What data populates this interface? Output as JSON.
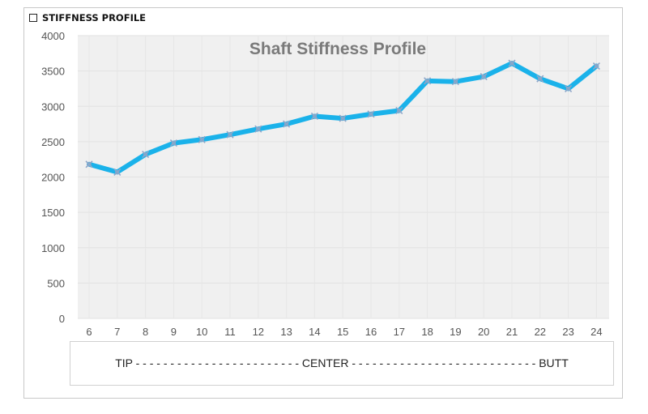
{
  "header": {
    "label": "STIFFNESS PROFILE"
  },
  "footer": {
    "text": "TIP - - - - - - - - - - - - - - - - - - - - - - - - CENTER - - - - - - - - - - - - - - - - - - - - - - - - - - - BUTT"
  },
  "chart_data": {
    "type": "line",
    "title": "Shaft Stiffness Profile",
    "xlabel": "",
    "ylabel": "",
    "categories": [
      "6",
      "7",
      "8",
      "9",
      "10",
      "11",
      "12",
      "13",
      "14",
      "15",
      "16",
      "17",
      "18",
      "19",
      "20",
      "21",
      "22",
      "23",
      "24"
    ],
    "series": [
      {
        "values": [
          2180,
          2070,
          2320,
          2480,
          2530,
          2600,
          2680,
          2750,
          2860,
          2830,
          2890,
          2940,
          3360,
          3350,
          3420,
          3610,
          3390,
          3250,
          3570
        ]
      }
    ],
    "ylim": [
      0,
      4000
    ],
    "yticks": [
      0,
      500,
      1000,
      1500,
      2000,
      2500,
      3000,
      3500,
      4000
    ],
    "grid": true,
    "line_color": "#1ab2ea",
    "marker_color": "#8fa6c8",
    "plot_bg": "#f0f0f0"
  }
}
